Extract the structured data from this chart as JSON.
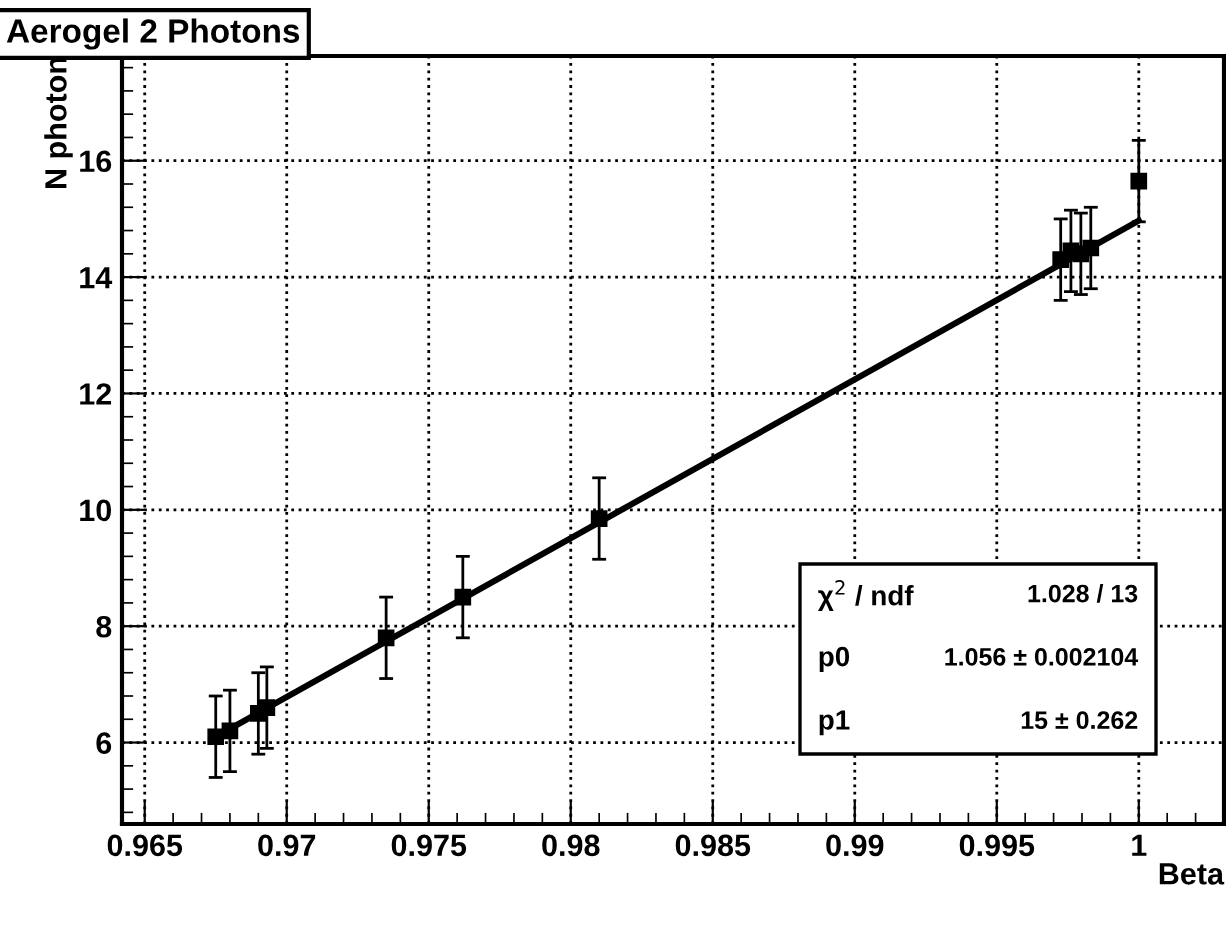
{
  "chart_data": {
    "type": "scatter",
    "title": "Aerogel 2 Photons",
    "xlabel": "Beta",
    "ylabel": "N photon",
    "xlim": [
      0.9642,
      1.003
    ],
    "ylim": [
      4.6,
      17.8
    ],
    "xticks": [
      0.965,
      0.97,
      0.975,
      0.98,
      0.985,
      0.99,
      0.995,
      1
    ],
    "yticks": [
      6,
      8,
      10,
      12,
      14,
      16
    ],
    "grid": true,
    "series": [
      {
        "marker": "square",
        "color": "#000000",
        "x": [
          0.9675,
          0.968,
          0.969,
          0.9693,
          0.9735,
          0.9762,
          0.981,
          0.99725,
          0.99761,
          0.99796,
          0.99831,
          1.0
        ],
        "values": [
          6.1,
          6.2,
          6.5,
          6.6,
          7.8,
          8.5,
          9.85,
          14.3,
          14.45,
          14.4,
          14.5,
          15.65
        ],
        "errors": [
          0.7,
          0.7,
          0.7,
          0.7,
          0.7,
          0.7,
          0.7,
          0.7,
          0.7,
          0.7,
          0.7,
          0.7
        ]
      },
      {
        "type": "line",
        "color": "#000000",
        "x": [
          0.9675,
          1.0
        ],
        "values": [
          6.1,
          14.97
        ]
      }
    ],
    "annotations": [
      "χ$^{2}$ / ndf",
      "1.028 / 13",
      "p0",
      "1.056 ± 0.002104",
      "p1",
      "15 ± 0.262"
    ]
  }
}
